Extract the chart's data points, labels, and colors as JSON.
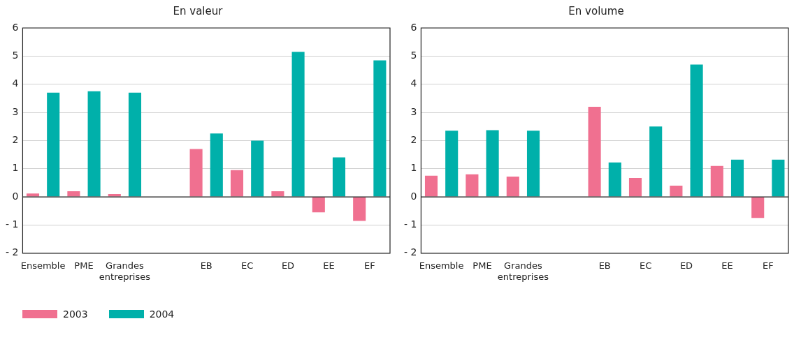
{
  "chart_data": [
    {
      "type": "bar",
      "title": "En valeur",
      "categories": [
        "Ensemble",
        "PME",
        "Grandes entreprises",
        null,
        "EB",
        "EC",
        "ED",
        "EE",
        "EF"
      ],
      "series": [
        {
          "name": "2003",
          "color": "#f07090",
          "values": [
            0.12,
            0.2,
            0.1,
            null,
            1.7,
            0.95,
            0.2,
            -0.55,
            -0.85
          ]
        },
        {
          "name": "2004",
          "color": "#00b0aa",
          "values": [
            3.7,
            3.75,
            3.7,
            null,
            2.25,
            2.0,
            5.15,
            1.4,
            4.85
          ]
        }
      ],
      "ylim": [
        -2,
        6
      ],
      "yticks": [
        -2,
        -1,
        0,
        1,
        2,
        3,
        4,
        5,
        6
      ],
      "grid": "y",
      "legend": "bottom left"
    },
    {
      "type": "bar",
      "title": "En volume",
      "categories": [
        "Ensemble",
        "PME",
        "Grandes entreprises",
        null,
        "EB",
        "EC",
        "ED",
        "EE",
        "EF"
      ],
      "series": [
        {
          "name": "2003",
          "color": "#f07090",
          "values": [
            0.75,
            0.8,
            0.72,
            null,
            3.2,
            0.67,
            0.4,
            1.1,
            -0.75
          ]
        },
        {
          "name": "2004",
          "color": "#00b0aa",
          "values": [
            2.35,
            2.37,
            2.35,
            null,
            1.22,
            2.5,
            4.7,
            1.32,
            1.32
          ]
        }
      ],
      "ylim": [
        -2,
        6
      ],
      "yticks": [
        -2,
        -1,
        0,
        1,
        2,
        3,
        4,
        5,
        6
      ],
      "grid": "y",
      "legend": false
    }
  ]
}
